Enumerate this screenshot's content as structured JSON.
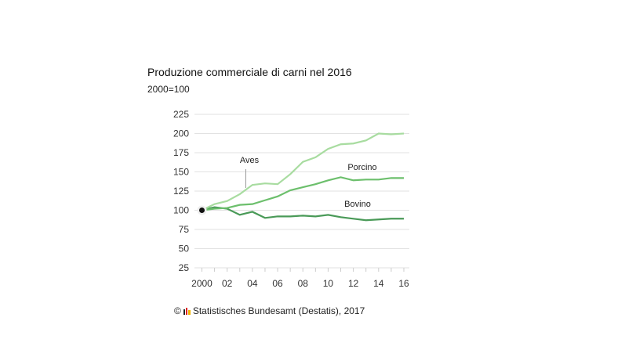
{
  "chart_data": {
    "type": "line",
    "title": "Produzione commerciale di carni nel 2016",
    "subtitle": "2000=100",
    "x": [
      2000,
      2001,
      2002,
      2003,
      2004,
      2005,
      2006,
      2007,
      2008,
      2009,
      2010,
      2011,
      2012,
      2013,
      2014,
      2015,
      2016
    ],
    "x_tick_labels": [
      "2000",
      "02",
      "04",
      "06",
      "08",
      "10",
      "12",
      "14",
      "16"
    ],
    "y_ticks": [
      25,
      50,
      75,
      100,
      125,
      150,
      175,
      200,
      225
    ],
    "ylim": [
      25,
      225
    ],
    "grid": true,
    "series": [
      {
        "name": "Aves",
        "color": "#a8dca0",
        "values": [
          100,
          108,
          112,
          121,
          133,
          135,
          134,
          147,
          163,
          169,
          180,
          186,
          187,
          191,
          200,
          199,
          200
        ]
      },
      {
        "name": "Porcino",
        "color": "#6cbf6c",
        "values": [
          100,
          102,
          103,
          107,
          108,
          113,
          118,
          126,
          130,
          134,
          139,
          143,
          139,
          140,
          140,
          142,
          142
        ]
      },
      {
        "name": "Bovino",
        "color": "#4a9a58",
        "values": [
          100,
          104,
          102,
          94,
          98,
          90,
          92,
          92,
          93,
          92,
          94,
          91,
          89,
          87,
          88,
          89,
          89
        ]
      }
    ],
    "source": "Statistisches Bundesamt (Destatis), 2017",
    "copyright_symbol": "©"
  }
}
